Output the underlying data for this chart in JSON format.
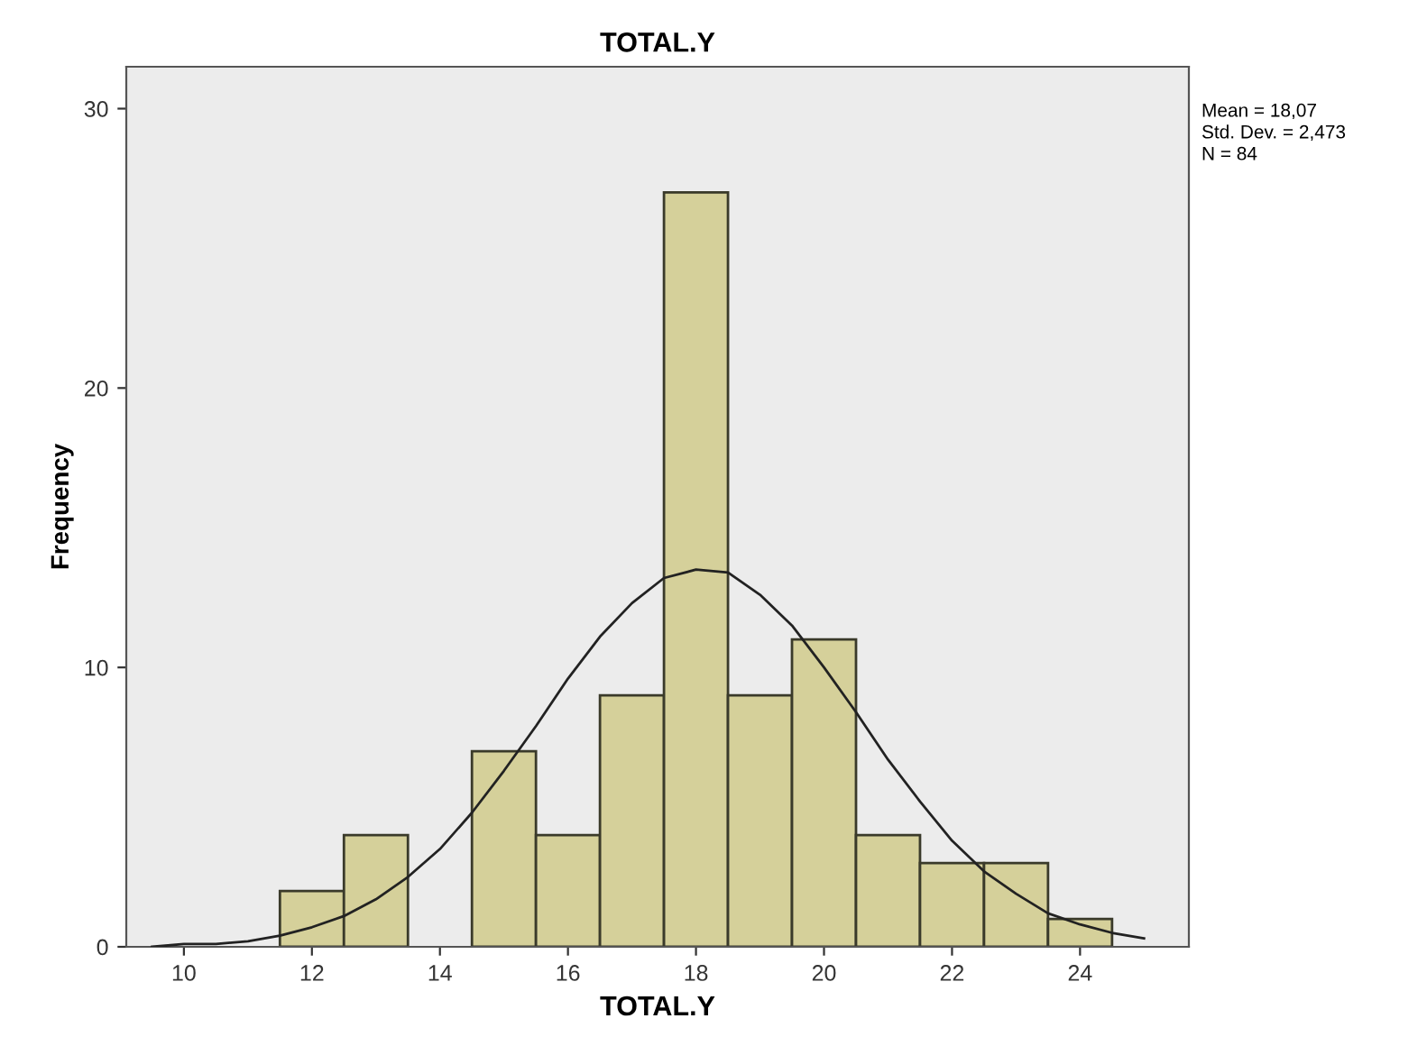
{
  "chart_data": {
    "type": "histogram",
    "title": "TOTAL.Y",
    "xlabel": "TOTAL.Y",
    "ylabel": "Frequency",
    "annotations": [
      "Mean = 18,07",
      "Std. Dev. = 2,473",
      "N = 84"
    ],
    "bins": [
      11.5,
      12.5,
      13.5,
      14.5,
      15.5,
      16.5,
      17.5,
      18.5,
      19.5,
      20.5,
      21.5,
      22.5,
      23.5,
      24.5
    ],
    "values": [
      2,
      4,
      0,
      7,
      4,
      9,
      27,
      9,
      11,
      4,
      3,
      3,
      1
    ],
    "color": "#d5d09a",
    "series": [
      {
        "type": "line",
        "color": "#222222",
        "x": [
          9.5,
          10,
          10.5,
          11,
          11.5,
          12,
          12.5,
          13,
          13.5,
          14,
          14.5,
          15,
          15.5,
          16,
          16.5,
          17,
          17.5,
          18,
          18.5,
          19,
          19.5,
          20,
          20.5,
          21,
          21.5,
          22,
          22.5,
          23,
          23.5,
          24,
          24.5,
          25
        ],
        "values": [
          0.0,
          0.1,
          0.1,
          0.2,
          0.4,
          0.7,
          1.1,
          1.7,
          2.5,
          3.5,
          4.8,
          6.3,
          7.9,
          9.6,
          11.1,
          12.3,
          13.2,
          13.5,
          13.4,
          12.6,
          11.5,
          10.0,
          8.4,
          6.7,
          5.2,
          3.8,
          2.7,
          1.9,
          1.2,
          0.8,
          0.5,
          0.3
        ]
      }
    ],
    "xlim": [
      9.1,
      25.7
    ],
    "ylim": [
      0,
      31.5
    ],
    "xticks": [
      10,
      12,
      14,
      16,
      18,
      20,
      22,
      24
    ],
    "yticks": [
      0,
      10,
      20,
      30
    ],
    "grid": false,
    "legend": false
  }
}
